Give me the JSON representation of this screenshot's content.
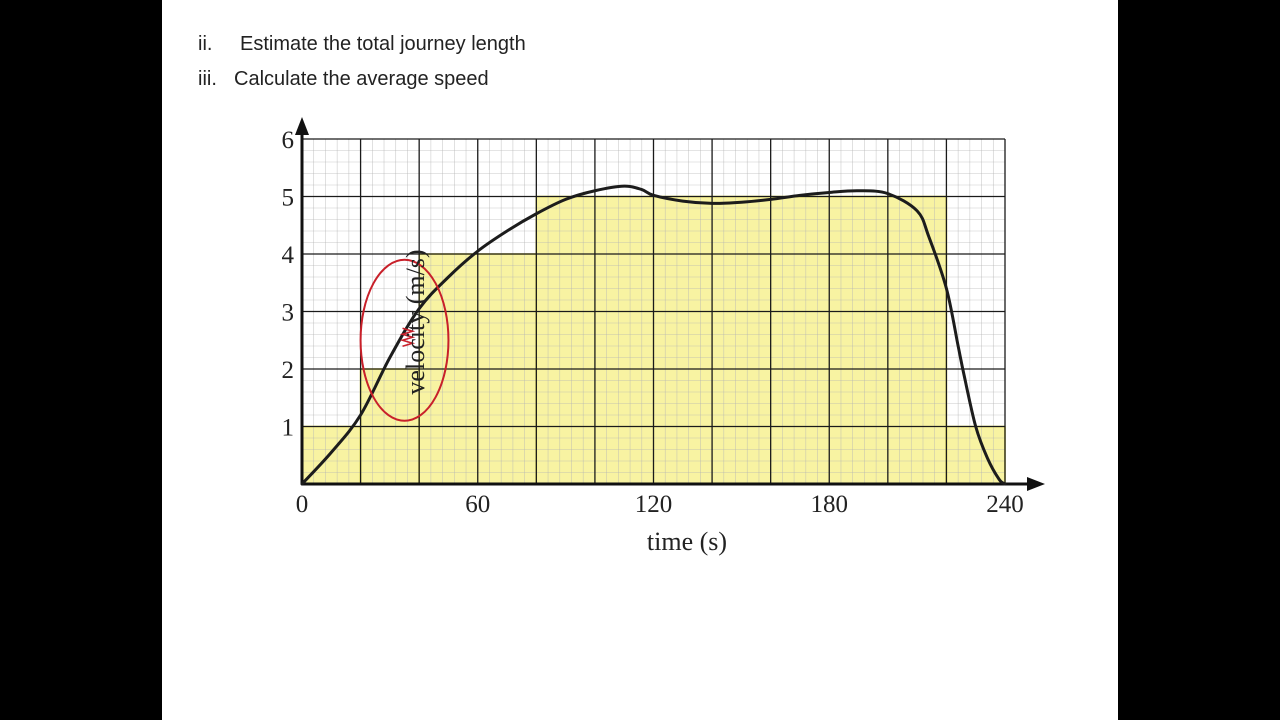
{
  "questions": [
    {
      "number": "ii.",
      "text": "Estimate the total journey length"
    },
    {
      "number": "iii.",
      "text": "Calculate the average speed"
    }
  ],
  "colors": {
    "fill": "#f8f3a2",
    "fill_stroke": "#e2d93a",
    "curve": "#1c1c1c",
    "grid_major": "#1a1a1a",
    "grid_minor": "#b5b5b5",
    "annotation": "#c8202a"
  },
  "chart_data": {
    "type": "line",
    "title": "",
    "xlabel": "time (s)",
    "ylabel": "velocity (m/s)",
    "xlim": [
      0,
      240
    ],
    "ylim": [
      0,
      6
    ],
    "x_ticks": [
      0,
      60,
      120,
      180,
      240
    ],
    "y_ticks": [
      1,
      2,
      3,
      4,
      5,
      6
    ],
    "grid": true,
    "major_grid_x_step": 20,
    "major_grid_y_step": 1,
    "minor_grid_x_step": 4,
    "minor_grid_y_step": 0.2,
    "series": [
      {
        "x": [
          0,
          10,
          20,
          30,
          40,
          50,
          60,
          70,
          80,
          90,
          100,
          110,
          116,
          120,
          130,
          140,
          150,
          160,
          170,
          180,
          190,
          200,
          210,
          214,
          220,
          224,
          226,
          230,
          234,
          238,
          240
        ],
        "y": [
          0,
          0.55,
          1.2,
          2.2,
          3.05,
          3.6,
          4.05,
          4.4,
          4.7,
          4.95,
          5.1,
          5.18,
          5.12,
          5.02,
          4.92,
          4.88,
          4.9,
          4.95,
          5.02,
          5.07,
          5.1,
          5.05,
          4.75,
          4.3,
          3.4,
          2.4,
          1.9,
          1.0,
          0.45,
          0.08,
          0
        ]
      }
    ],
    "estimate_blocks": [
      {
        "x0": 0,
        "x1": 20,
        "value": 1
      },
      {
        "x0": 20,
        "x1": 40,
        "value": 2
      },
      {
        "x0": 40,
        "x1": 80,
        "value": 4
      },
      {
        "x0": 80,
        "x1": 220,
        "value": 5
      },
      {
        "x0": 220,
        "x1": 240,
        "value": 1
      }
    ],
    "annotations": [
      {
        "type": "circle",
        "cx": 35,
        "cy": 2.5,
        "rx": 15,
        "ry": 1.4
      }
    ]
  }
}
